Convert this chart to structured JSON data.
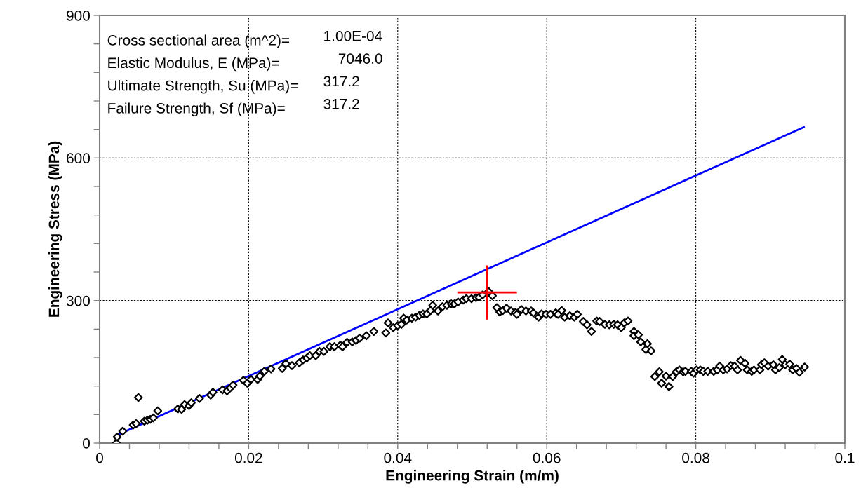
{
  "chart_data": {
    "type": "scatter",
    "xlabel": "Engineering Strain (m/m)",
    "ylabel": "Engineering Stress (MPa)",
    "xlim": [
      0,
      0.1
    ],
    "ylim": [
      0,
      900
    ],
    "xticks": [
      0,
      {
        "value": 0.004,
        "label": null
      },
      {
        "value": 0.008,
        "label": null
      },
      {
        "value": 0.012,
        "label": null
      },
      {
        "value": 0.016,
        "label": null
      },
      0.02,
      {
        "value": 0.024,
        "label": null
      },
      {
        "value": 0.028,
        "label": null
      },
      {
        "value": 0.032,
        "label": null
      },
      {
        "value": 0.036,
        "label": null
      },
      0.04,
      {
        "value": 0.044,
        "label": null
      },
      {
        "value": 0.048,
        "label": null
      },
      {
        "value": 0.052,
        "label": null
      },
      {
        "value": 0.056,
        "label": null
      },
      0.06,
      {
        "value": 0.064,
        "label": null
      },
      {
        "value": 0.068,
        "label": null
      },
      {
        "value": 0.072,
        "label": null
      },
      {
        "value": 0.076,
        "label": null
      },
      0.08,
      {
        "value": 0.084,
        "label": null
      },
      {
        "value": 0.088,
        "label": null
      },
      {
        "value": 0.092,
        "label": null
      },
      {
        "value": 0.096,
        "label": null
      },
      0.1
    ],
    "yticks": [
      0,
      {
        "value": 60,
        "label": null
      },
      {
        "value": 120,
        "label": null
      },
      {
        "value": 180,
        "label": null
      },
      {
        "value": 240,
        "label": null
      },
      300,
      {
        "value": 360,
        "label": null
      },
      {
        "value": 420,
        "label": null
      },
      {
        "value": 480,
        "label": null
      },
      {
        "value": 540,
        "label": null
      },
      600,
      {
        "value": 660,
        "label": null
      },
      {
        "value": 720,
        "label": null
      },
      {
        "value": 780,
        "label": null
      },
      {
        "value": 840,
        "label": null
      },
      900
    ],
    "grid": true,
    "marker": "diamond",
    "annotations": [
      "Cross sectional area (m^2)=",
      "1.00E-04",
      "Elastic Modulus, E (MPa)=",
      "7046.0",
      "Ultimate Strength, Su (MPa)=",
      "317.2",
      "Failure Strength, Sf (MPa)=",
      "317.2"
    ],
    "series": [
      {
        "type": "line",
        "color": "#0000ff",
        "marker": "none",
        "x": [
          0.0025,
          0.0945
        ],
        "values": [
          18,
          665
        ]
      },
      {
        "color": "#000000",
        "x": [
          0.00226,
          0.00235,
          0.0031,
          0.0045,
          0.0049,
          0.0052,
          0.006,
          0.0064,
          0.0068,
          0.0072,
          0.0078,
          0.0105,
          0.011,
          0.0114,
          0.012,
          0.0123,
          0.0134,
          0.0149,
          0.0152,
          0.0165,
          0.0171,
          0.0175,
          0.0179,
          0.0193,
          0.0198,
          0.0203,
          0.0212,
          0.0215,
          0.0221,
          0.023,
          0.0245,
          0.025,
          0.0258,
          0.0268,
          0.0273,
          0.0278,
          0.0282,
          0.029,
          0.0295,
          0.0301,
          0.0309,
          0.0315,
          0.0323,
          0.0326,
          0.0332,
          0.0339,
          0.0344,
          0.0349,
          0.0358,
          0.0368,
          0.0384,
          0.0387,
          0.0394,
          0.04,
          0.0405,
          0.0408,
          0.0412,
          0.0419,
          0.0424,
          0.0429,
          0.0434,
          0.0439,
          0.0444,
          0.0447,
          0.0454,
          0.046,
          0.0466,
          0.0472,
          0.0476,
          0.0481,
          0.0488,
          0.0492,
          0.0499,
          0.0505,
          0.0509,
          0.0514,
          0.0522,
          0.0527,
          0.0533,
          0.0537,
          0.0541,
          0.0546,
          0.0552,
          0.0558,
          0.056,
          0.0566,
          0.0572,
          0.0579,
          0.0582,
          0.0589,
          0.0593,
          0.0599,
          0.0605,
          0.0612,
          0.0615,
          0.062,
          0.0624,
          0.0631,
          0.0637,
          0.0641,
          0.0649,
          0.0654,
          0.066,
          0.0667,
          0.0671,
          0.0678,
          0.0684,
          0.069,
          0.0695,
          0.07,
          0.0704,
          0.0709,
          0.0717,
          0.0717,
          0.0723,
          0.0726,
          0.0735,
          0.0733,
          0.074,
          0.0745,
          0.0751,
          0.0754,
          0.076,
          0.0764,
          0.0769,
          0.0774,
          0.0778,
          0.0783,
          0.0786,
          0.0794,
          0.0797,
          0.0801,
          0.0806,
          0.081,
          0.0816,
          0.0824,
          0.0829,
          0.0832,
          0.0837,
          0.0842,
          0.0847,
          0.0852,
          0.0856,
          0.086,
          0.0866,
          0.0869,
          0.0875,
          0.0878,
          0.0886,
          0.0888,
          0.0892,
          0.0897,
          0.0904,
          0.0907,
          0.0912,
          0.0916,
          0.092,
          0.0926,
          0.093,
          0.0935,
          0.0939,
          0.0946
        ],
        "values": [
          0,
          13,
          25,
          38,
          41,
          96,
          46,
          48,
          50,
          53,
          68,
          72,
          71,
          81,
          79,
          85,
          94,
          101,
          107,
          112,
          110,
          116,
          122,
          132,
          126,
          134,
          134,
          141,
          151,
          156,
          157,
          167,
          163,
          169,
          175,
          179,
          184,
          184,
          193,
          193,
          203,
          203,
          206,
          203,
          212,
          213,
          216,
          221,
          226,
          235,
          232,
          253,
          243,
          247,
          250,
          263,
          259,
          263,
          265,
          269,
          272,
          272,
          279,
          290,
          278,
          287,
          290,
          293,
          293,
          297,
          301,
          304,
          304,
          306,
          307,
          312,
          319,
          310,
          285,
          276,
          279,
          284,
          278,
          275,
          271,
          281,
          278,
          278,
          274,
          265,
          272,
          271,
          271,
          274,
          271,
          279,
          265,
          268,
          265,
          271,
          256,
          249,
          235,
          257,
          256,
          250,
          249,
          250,
          249,
          243,
          253,
          257,
          235,
          226,
          228,
          213,
          209,
          197,
          194,
          140,
          150,
          126,
          141,
          119,
          140,
          150,
          154,
          150,
          151,
          151,
          147,
          154,
          154,
          151,
          151,
          151,
          154,
          162,
          154,
          156,
          163,
          162,
          154,
          174,
          168,
          154,
          151,
          154,
          154,
          165,
          169,
          162,
          165,
          154,
          159,
          176,
          165,
          166,
          154,
          157,
          149,
          160
        ]
      },
      {
        "type": "scatter",
        "color": "#ff0000",
        "marker": "cross",
        "x": [
          0.052
        ],
        "values": [
          317
        ],
        "errors": [
          57
        ],
        "xerrors": [
          0.004
        ]
      }
    ]
  }
}
